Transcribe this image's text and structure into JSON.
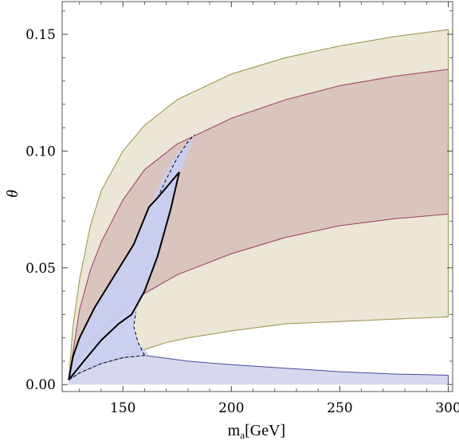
{
  "chart_data": {
    "type": "area",
    "xlabel": "m",
    "xlabel_sub": "a",
    "xlabel_unit": "[GeV]",
    "ylabel": "θ",
    "xlim": [
      122,
      302
    ],
    "ylim": [
      -0.003,
      0.164
    ],
    "x_ticks": [
      150,
      200,
      250,
      300
    ],
    "y_ticks": [
      0.0,
      0.05,
      0.1,
      0.15
    ],
    "y_tick_labels": [
      "0.00",
      "0.05",
      "0.10",
      "0.15"
    ],
    "grid": false,
    "legend": "none",
    "colors": {
      "tan_fill": "#ebe6d5",
      "tan_line": "#a09858",
      "rose_fill": "#d8c0bb",
      "rose_line": "#a04a6a",
      "blue_fill": "#c9cef2",
      "blue_fill_light": "#d6d8ee",
      "blue_line": "#4a4a9a",
      "black": "#000000"
    },
    "regions": [
      {
        "id": "tan",
        "upper": [
          [
            125,
            0.002
          ],
          [
            127,
            0.025
          ],
          [
            130,
            0.045
          ],
          [
            135,
            0.068
          ],
          [
            140,
            0.083
          ],
          [
            150,
            0.1
          ],
          [
            160,
            0.111
          ],
          [
            175,
            0.122
          ],
          [
            200,
            0.133
          ],
          [
            225,
            0.14
          ],
          [
            250,
            0.145
          ],
          [
            275,
            0.149
          ],
          [
            300,
            0.152
          ]
        ],
        "lower": [
          [
            125,
            0.002
          ],
          [
            130,
            0.006
          ],
          [
            140,
            0.009
          ],
          [
            150,
            0.012
          ],
          [
            160,
            0.015
          ],
          [
            170,
            0.018
          ],
          [
            180,
            0.02
          ],
          [
            200,
            0.023
          ],
          [
            225,
            0.026
          ],
          [
            250,
            0.027
          ],
          [
            275,
            0.028
          ],
          [
            300,
            0.029
          ]
        ]
      },
      {
        "id": "rose",
        "upper": [
          [
            125,
            0.002
          ],
          [
            130,
            0.032
          ],
          [
            135,
            0.049
          ],
          [
            140,
            0.061
          ],
          [
            150,
            0.079
          ],
          [
            160,
            0.092
          ],
          [
            175,
            0.103
          ],
          [
            200,
            0.114
          ],
          [
            225,
            0.122
          ],
          [
            250,
            0.128
          ],
          [
            275,
            0.132
          ],
          [
            300,
            0.135
          ]
        ],
        "lower": [
          [
            125,
            0.002
          ],
          [
            130,
            0.012
          ],
          [
            140,
            0.023
          ],
          [
            150,
            0.031
          ],
          [
            160,
            0.039
          ],
          [
            175,
            0.047
          ],
          [
            200,
            0.056
          ],
          [
            225,
            0.063
          ],
          [
            250,
            0.068
          ],
          [
            275,
            0.071
          ],
          [
            300,
            0.073
          ]
        ]
      },
      {
        "id": "blue_band",
        "upper": [
          [
            125,
            0.002
          ],
          [
            130,
            0.005
          ],
          [
            140,
            0.009
          ],
          [
            150,
            0.0115
          ],
          [
            160,
            0.0125
          ],
          [
            180,
            0.01
          ],
          [
            200,
            0.0085
          ],
          [
            225,
            0.007
          ],
          [
            250,
            0.0055
          ],
          [
            275,
            0.0045
          ],
          [
            300,
            0.004
          ]
        ],
        "lower": [
          [
            125,
            0.0
          ],
          [
            300,
            0.0
          ]
        ]
      },
      {
        "id": "blue_wedge",
        "outline": [
          [
            125,
            0.002
          ],
          [
            127,
            0.012
          ],
          [
            130,
            0.02
          ],
          [
            137,
            0.033
          ],
          [
            145,
            0.045
          ],
          [
            155,
            0.06
          ],
          [
            162,
            0.076
          ],
          [
            168,
            0.087
          ],
          [
            172,
            0.095
          ],
          [
            176,
            0.1
          ],
          [
            183,
            0.107
          ],
          [
            180,
            0.1
          ],
          [
            176,
            0.09
          ],
          [
            172,
            0.075
          ],
          [
            166,
            0.055
          ],
          [
            160,
            0.04
          ],
          [
            156,
            0.031
          ],
          [
            155,
            0.025
          ],
          [
            157,
            0.018
          ],
          [
            160,
            0.015
          ],
          [
            162,
            0.0125
          ],
          [
            150,
            0.0115
          ],
          [
            140,
            0.009
          ],
          [
            130,
            0.005
          ],
          [
            125,
            0.002
          ]
        ]
      }
    ],
    "dashed_curves": [
      [
        [
          125,
          0.002
        ],
        [
          130,
          0.005
        ],
        [
          140,
          0.009
        ],
        [
          150,
          0.0115
        ],
        [
          160,
          0.0125
        ]
      ],
      [
        [
          160,
          0.0125
        ],
        [
          157,
          0.018
        ],
        [
          155,
          0.025
        ],
        [
          156,
          0.031
        ]
      ],
      [
        [
          166,
          0.08
        ],
        [
          170,
          0.088
        ],
        [
          175,
          0.097
        ],
        [
          180,
          0.104
        ],
        [
          183,
          0.107
        ]
      ]
    ],
    "solid_curves": [
      [
        [
          125,
          0.002
        ],
        [
          127,
          0.012
        ],
        [
          130,
          0.02
        ],
        [
          137,
          0.033
        ],
        [
          145,
          0.045
        ],
        [
          155,
          0.06
        ],
        [
          162,
          0.076
        ],
        [
          166,
          0.08
        ]
      ],
      [
        [
          166,
          0.08
        ],
        [
          176,
          0.091
        ]
      ],
      [
        [
          176,
          0.091
        ],
        [
          172,
          0.075
        ],
        [
          166,
          0.055
        ],
        [
          160,
          0.04
        ],
        [
          154,
          0.03
        ]
      ],
      [
        [
          154,
          0.03
        ],
        [
          148,
          0.026
        ],
        [
          140,
          0.019
        ],
        [
          132,
          0.01
        ],
        [
          125,
          0.002
        ]
      ]
    ]
  }
}
